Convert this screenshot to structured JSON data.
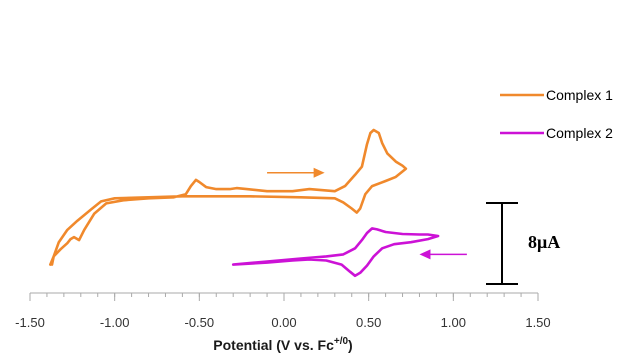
{
  "chart_data": {
    "type": "line",
    "title": "",
    "xlabel": "Potential (V vs. Fc",
    "xlabel_superscript": "+/0",
    "xlabel_suffix": ")",
    "ylabel": "",
    "xlim": [
      -1.5,
      1.5
    ],
    "x_ticks": [
      -1.5,
      -1.0,
      -0.5,
      0.0,
      0.5,
      1.0,
      1.5
    ],
    "x_tick_labels": [
      "-1.50",
      "-1.00",
      "-0.50",
      "0.00",
      "0.50",
      "1.00",
      "1.50"
    ],
    "grid": false,
    "legend_position": "top-right",
    "scale_bar_label": "8μA",
    "series": [
      {
        "name": "Complex 1",
        "color": "#F0892C",
        "points": [
          [
            -1.37,
            -3.0
          ],
          [
            -1.36,
            -2.2
          ],
          [
            -1.32,
            -1.5
          ],
          [
            -1.28,
            -0.9
          ],
          [
            -1.26,
            -0.5
          ],
          [
            -1.24,
            -0.3
          ],
          [
            -1.21,
            -0.6
          ],
          [
            -1.18,
            0.4
          ],
          [
            -1.12,
            2.0
          ],
          [
            -1.05,
            3.0
          ],
          [
            -0.95,
            3.3
          ],
          [
            -0.8,
            3.5
          ],
          [
            -0.65,
            3.6
          ],
          [
            -0.58,
            3.9
          ],
          [
            -0.55,
            4.7
          ],
          [
            -0.52,
            5.3
          ],
          [
            -0.5,
            5.1
          ],
          [
            -0.46,
            4.6
          ],
          [
            -0.4,
            4.4
          ],
          [
            -0.32,
            4.4
          ],
          [
            -0.28,
            4.5
          ],
          [
            -0.22,
            4.4
          ],
          [
            -0.1,
            4.2
          ],
          [
            0.05,
            4.2
          ],
          [
            0.15,
            4.4
          ],
          [
            0.22,
            4.3
          ],
          [
            0.3,
            4.2
          ],
          [
            0.36,
            4.7
          ],
          [
            0.42,
            5.8
          ],
          [
            0.46,
            6.6
          ],
          [
            0.49,
            8.8
          ],
          [
            0.51,
            9.9
          ],
          [
            0.53,
            10.2
          ],
          [
            0.56,
            9.9
          ],
          [
            0.58,
            8.9
          ],
          [
            0.61,
            7.9
          ],
          [
            0.66,
            7.1
          ],
          [
            0.7,
            6.7
          ],
          [
            0.72,
            6.4
          ],
          [
            0.66,
            5.6
          ],
          [
            0.6,
            5.2
          ],
          [
            0.52,
            4.7
          ],
          [
            0.48,
            3.9
          ],
          [
            0.45,
            2.5
          ],
          [
            0.43,
            2.1
          ],
          [
            0.4,
            2.5
          ],
          [
            0.35,
            3.1
          ],
          [
            0.3,
            3.5
          ],
          [
            0.1,
            3.6
          ],
          [
            -0.2,
            3.7
          ],
          [
            -0.6,
            3.7
          ],
          [
            -0.8,
            3.6
          ],
          [
            -1.0,
            3.5
          ],
          [
            -1.08,
            3.2
          ],
          [
            -1.14,
            2.4
          ],
          [
            -1.22,
            1.3
          ],
          [
            -1.28,
            0.4
          ],
          [
            -1.33,
            -0.8
          ],
          [
            -1.36,
            -2.2
          ],
          [
            -1.38,
            -3.0
          ]
        ]
      },
      {
        "name": "Complex 2",
        "color": "#CC12D6",
        "points": [
          [
            -0.3,
            -3.0
          ],
          [
            -0.1,
            -2.7
          ],
          [
            0.1,
            -2.4
          ],
          [
            0.25,
            -2.2
          ],
          [
            0.35,
            -2.0
          ],
          [
            0.42,
            -1.4
          ],
          [
            0.46,
            -0.6
          ],
          [
            0.49,
            0.1
          ],
          [
            0.52,
            0.55
          ],
          [
            0.55,
            0.45
          ],
          [
            0.6,
            0.2
          ],
          [
            0.7,
            0.0
          ],
          [
            0.8,
            -0.05
          ],
          [
            0.85,
            -0.05
          ],
          [
            0.91,
            -0.2
          ],
          [
            0.85,
            -0.5
          ],
          [
            0.75,
            -0.8
          ],
          [
            0.65,
            -1.0
          ],
          [
            0.58,
            -1.4
          ],
          [
            0.53,
            -2.2
          ],
          [
            0.49,
            -3.1
          ],
          [
            0.45,
            -3.8
          ],
          [
            0.42,
            -4.1
          ],
          [
            0.39,
            -3.7
          ],
          [
            0.34,
            -3.0
          ],
          [
            0.25,
            -2.6
          ],
          [
            0.15,
            -2.5
          ],
          [
            0.05,
            -2.6
          ],
          [
            -0.1,
            -2.8
          ],
          [
            -0.3,
            -3.0
          ]
        ]
      }
    ],
    "annotations": [
      {
        "type": "arrow",
        "series": "Complex 1",
        "from": [
          -0.1,
          6.0
        ],
        "to": [
          0.24,
          6.0
        ]
      },
      {
        "type": "arrow",
        "series": "Complex 2",
        "from": [
          1.08,
          -2.0
        ],
        "to": [
          0.8,
          -2.0
        ]
      }
    ],
    "scale_bar": {
      "value_uA": 8
    }
  }
}
